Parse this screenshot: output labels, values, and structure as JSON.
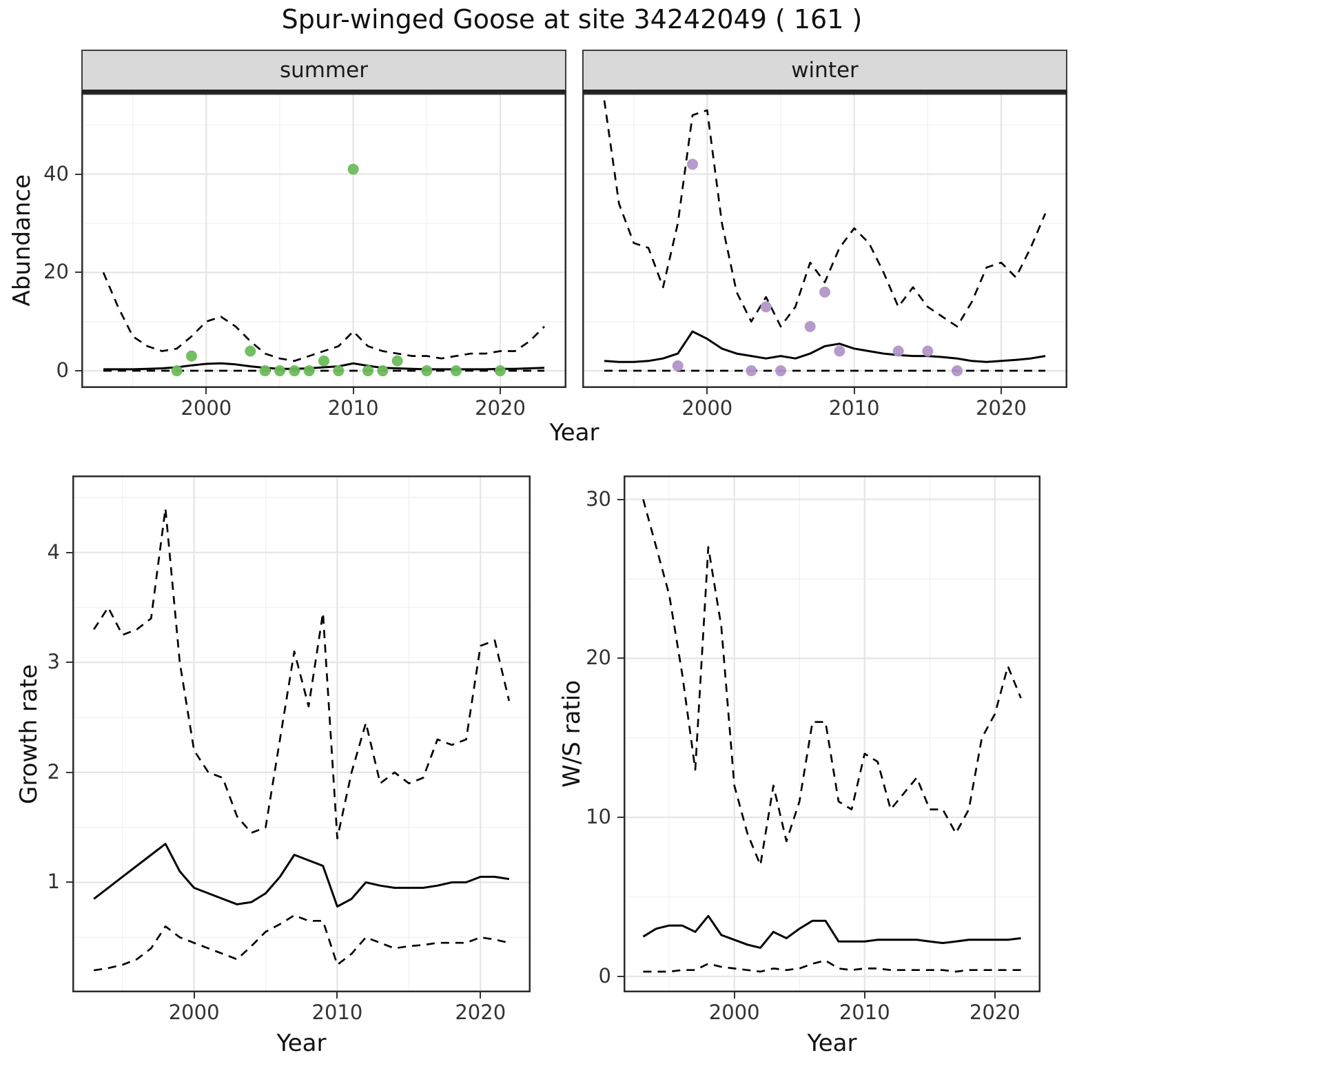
{
  "title": "Spur-winged Goose at site 34242049 ( 161 )",
  "colors": {
    "line": "#000000",
    "summer_point": "#6dbb5c",
    "winter_point": "#b295c9",
    "grid_major": "#e5e5e5",
    "grid_minor": "#f2f2f2",
    "panel_border": "#2b2b2b",
    "strip_bg": "#d9d9d9"
  },
  "chart_data": [
    {
      "id": "abundance-summer",
      "type": "line",
      "facet_label": "summer",
      "xlabel": "Year",
      "ylabel": "Abundance",
      "xlim": [
        1991.5,
        2024.5
      ],
      "ylim": [
        -3.5,
        56.5
      ],
      "xticks": [
        2000,
        2010,
        2020
      ],
      "yticks": [
        0,
        20,
        40
      ],
      "x": [
        1993,
        1994,
        1995,
        1996,
        1997,
        1998,
        1999,
        2000,
        2001,
        2002,
        2003,
        2004,
        2005,
        2006,
        2007,
        2008,
        2009,
        2010,
        2011,
        2012,
        2013,
        2014,
        2015,
        2016,
        2017,
        2018,
        2019,
        2020,
        2021,
        2022,
        2023
      ],
      "series": [
        {
          "name": "fit",
          "style": "solid",
          "values": [
            0.3,
            0.3,
            0.3,
            0.4,
            0.5,
            0.7,
            1.1,
            1.4,
            1.5,
            1.3,
            0.9,
            0.6,
            0.4,
            0.4,
            0.5,
            0.7,
            0.9,
            1.5,
            1.0,
            0.6,
            0.5,
            0.4,
            0.3,
            0.3,
            0.3,
            0.3,
            0.3,
            0.4,
            0.4,
            0.5,
            0.6
          ]
        },
        {
          "name": "upper_ci",
          "style": "dashed",
          "values": [
            20,
            13,
            7,
            5,
            4,
            4.5,
            7,
            10,
            11,
            9,
            6,
            3.5,
            2.5,
            2,
            3,
            4,
            5,
            8,
            5,
            4,
            3.5,
            3,
            3,
            2.5,
            3,
            3.5,
            3.5,
            4,
            4,
            6,
            9
          ]
        },
        {
          "name": "lower_ci",
          "style": "dashed",
          "values": [
            0,
            0,
            0,
            0,
            0,
            0,
            0,
            0,
            0,
            0,
            0,
            0,
            0,
            0,
            0,
            0,
            0,
            0,
            0,
            0,
            0,
            0,
            0,
            0,
            0,
            0,
            0,
            0,
            0,
            0,
            0
          ]
        }
      ],
      "points": {
        "name": "observed-counts",
        "color": "#6dbb5c",
        "data": [
          [
            1998,
            0
          ],
          [
            1999,
            3
          ],
          [
            2003,
            4
          ],
          [
            2004,
            0
          ],
          [
            2005,
            0
          ],
          [
            2006,
            0
          ],
          [
            2007,
            0
          ],
          [
            2008,
            2
          ],
          [
            2009,
            0
          ],
          [
            2010,
            41
          ],
          [
            2011,
            0
          ],
          [
            2012,
            0
          ],
          [
            2013,
            2
          ],
          [
            2015,
            0
          ],
          [
            2017,
            0
          ],
          [
            2020,
            0
          ]
        ]
      }
    },
    {
      "id": "abundance-winter",
      "type": "line",
      "facet_label": "winter",
      "xlabel": "Year",
      "ylabel": "Abundance",
      "xlim": [
        1991.5,
        2024.5
      ],
      "ylim": [
        -3.5,
        56.5
      ],
      "xticks": [
        2000,
        2010,
        2020
      ],
      "yticks": [
        0,
        20,
        40
      ],
      "x": [
        1993,
        1994,
        1995,
        1996,
        1997,
        1998,
        1999,
        2000,
        2001,
        2002,
        2003,
        2004,
        2005,
        2006,
        2007,
        2008,
        2009,
        2010,
        2011,
        2012,
        2013,
        2014,
        2015,
        2016,
        2017,
        2018,
        2019,
        2020,
        2021,
        2022,
        2023
      ],
      "series": [
        {
          "name": "fit",
          "style": "solid",
          "values": [
            2,
            1.8,
            1.8,
            2,
            2.5,
            3.5,
            8,
            6.5,
            4.5,
            3.5,
            3,
            2.5,
            3,
            2.5,
            3.5,
            5,
            5.5,
            4.5,
            4,
            3.5,
            3.2,
            3,
            3,
            2.8,
            2.5,
            2,
            1.8,
            2,
            2.2,
            2.5,
            3
          ]
        },
        {
          "name": "upper_ci",
          "style": "dashed",
          "values": [
            55,
            34,
            26,
            25,
            17,
            30,
            52,
            53,
            30,
            16,
            10,
            15,
            9,
            13,
            22,
            18,
            25,
            29,
            26,
            20,
            13,
            17,
            13,
            11,
            9,
            14,
            21,
            22,
            19,
            25,
            32
          ]
        },
        {
          "name": "lower_ci",
          "style": "dashed",
          "values": [
            0,
            0,
            0,
            0,
            0,
            0,
            0,
            0,
            0,
            0,
            0,
            0,
            0,
            0,
            0,
            0,
            0,
            0,
            0,
            0,
            0,
            0,
            0,
            0,
            0,
            0,
            0,
            0,
            0,
            0,
            0
          ]
        }
      ],
      "points": {
        "name": "observed-counts",
        "color": "#b295c9",
        "data": [
          [
            1998,
            1
          ],
          [
            1999,
            42
          ],
          [
            2003,
            0
          ],
          [
            2004,
            13
          ],
          [
            2005,
            0
          ],
          [
            2007,
            9
          ],
          [
            2008,
            16
          ],
          [
            2009,
            4
          ],
          [
            2013,
            4
          ],
          [
            2015,
            4
          ],
          [
            2017,
            0
          ]
        ]
      }
    },
    {
      "id": "growth-rate",
      "type": "line",
      "facet_label": "",
      "xlabel": "Year",
      "ylabel": "Growth rate",
      "xlim": [
        1991.5,
        2023.5
      ],
      "ylim": [
        0,
        4.7
      ],
      "xticks": [
        2000,
        2010,
        2020
      ],
      "yticks": [
        1,
        2,
        3,
        4
      ],
      "x": [
        1993,
        1994,
        1995,
        1996,
        1997,
        1998,
        1999,
        2000,
        2001,
        2002,
        2003,
        2004,
        2005,
        2006,
        2007,
        2008,
        2009,
        2010,
        2011,
        2012,
        2013,
        2014,
        2015,
        2016,
        2017,
        2018,
        2019,
        2020,
        2021,
        2022
      ],
      "series": [
        {
          "name": "fit",
          "style": "solid",
          "values": [
            0.85,
            0.95,
            1.05,
            1.15,
            1.25,
            1.35,
            1.1,
            0.95,
            0.9,
            0.85,
            0.8,
            0.82,
            0.9,
            1.05,
            1.25,
            1.2,
            1.15,
            0.78,
            0.85,
            1.0,
            0.97,
            0.95,
            0.95,
            0.95,
            0.97,
            1.0,
            1.0,
            1.05,
            1.05,
            1.03
          ]
        },
        {
          "name": "upper_ci",
          "style": "dashed",
          "values": [
            3.3,
            3.5,
            3.25,
            3.3,
            3.4,
            4.4,
            3.0,
            2.2,
            2.0,
            1.95,
            1.6,
            1.45,
            1.5,
            2.3,
            3.1,
            2.6,
            3.45,
            1.4,
            2.0,
            2.45,
            1.9,
            2.0,
            1.9,
            1.95,
            2.3,
            2.25,
            2.3,
            3.15,
            3.2,
            2.65
          ]
        },
        {
          "name": "lower_ci",
          "style": "dashed",
          "values": [
            0.2,
            0.22,
            0.25,
            0.3,
            0.4,
            0.6,
            0.5,
            0.45,
            0.4,
            0.35,
            0.3,
            0.42,
            0.55,
            0.62,
            0.7,
            0.65,
            0.65,
            0.25,
            0.35,
            0.5,
            0.45,
            0.4,
            0.42,
            0.43,
            0.45,
            0.45,
            0.45,
            0.5,
            0.48,
            0.45
          ]
        }
      ],
      "points": null
    },
    {
      "id": "ws-ratio",
      "type": "line",
      "facet_label": "",
      "xlabel": "Year",
      "ylabel": "W/S ratio",
      "xlim": [
        1991.5,
        2023.5
      ],
      "ylim": [
        -1,
        31.5
      ],
      "xticks": [
        2000,
        2010,
        2020
      ],
      "yticks": [
        0,
        10,
        20,
        30
      ],
      "x": [
        1993,
        1994,
        1995,
        1996,
        1997,
        1998,
        1999,
        2000,
        2001,
        2002,
        2003,
        2004,
        2005,
        2006,
        2007,
        2008,
        2009,
        2010,
        2011,
        2012,
        2013,
        2014,
        2015,
        2016,
        2017,
        2018,
        2019,
        2020,
        2021,
        2022
      ],
      "series": [
        {
          "name": "fit",
          "style": "solid",
          "values": [
            2.5,
            3.0,
            3.2,
            3.2,
            2.8,
            3.8,
            2.6,
            2.3,
            2.0,
            1.8,
            2.8,
            2.4,
            3.0,
            3.5,
            3.5,
            2.2,
            2.2,
            2.2,
            2.3,
            2.3,
            2.3,
            2.3,
            2.2,
            2.1,
            2.2,
            2.3,
            2.3,
            2.3,
            2.3,
            2.4
          ]
        },
        {
          "name": "upper_ci",
          "style": "dashed",
          "values": [
            30,
            27,
            24,
            19,
            13,
            27,
            22,
            12,
            9,
            7,
            12,
            8.5,
            11,
            16,
            16,
            11,
            10.5,
            14,
            13.5,
            10.5,
            11.5,
            12.5,
            10.5,
            10.5,
            9,
            10.5,
            15,
            16.5,
            19.5,
            17.5
          ]
        },
        {
          "name": "lower_ci",
          "style": "dashed",
          "values": [
            0.3,
            0.3,
            0.3,
            0.4,
            0.4,
            0.8,
            0.6,
            0.5,
            0.4,
            0.3,
            0.5,
            0.4,
            0.5,
            0.8,
            1.0,
            0.5,
            0.4,
            0.5,
            0.5,
            0.4,
            0.4,
            0.4,
            0.4,
            0.4,
            0.3,
            0.4,
            0.4,
            0.4,
            0.4,
            0.4
          ]
        }
      ],
      "points": null
    }
  ]
}
